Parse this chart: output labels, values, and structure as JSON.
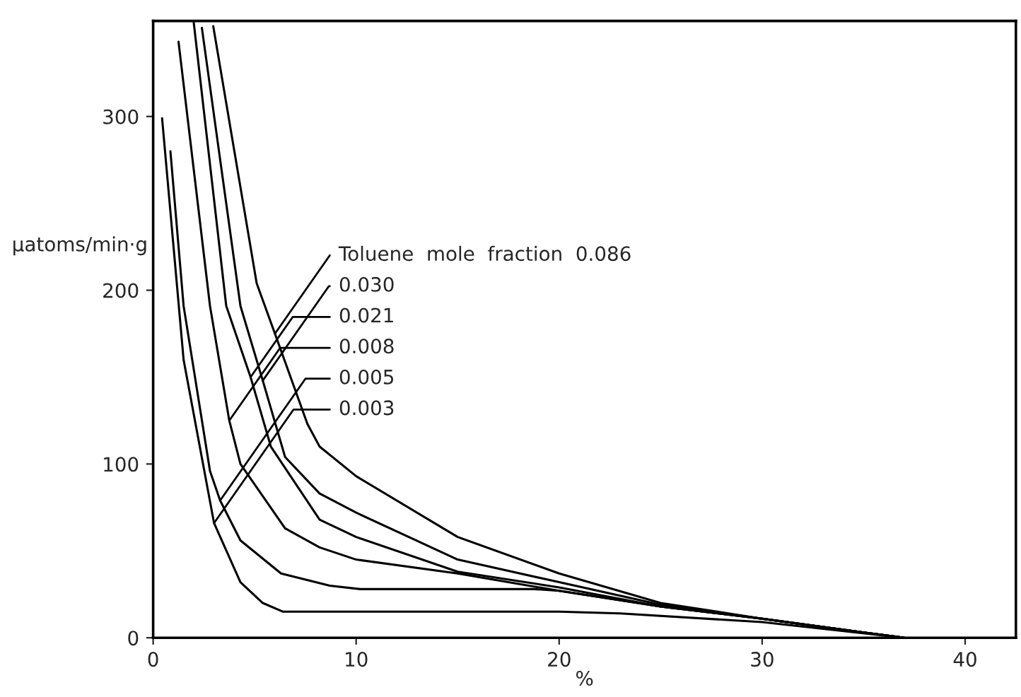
{
  "chart_data": {
    "type": "line",
    "xlabel": "%",
    "ylabel": "μatoms/min·g",
    "xlim": [
      0,
      42.5
    ],
    "ylim": [
      0,
      355
    ],
    "xticks": [
      0,
      10,
      20,
      30,
      40
    ],
    "yticks": [
      0,
      100,
      200,
      300
    ],
    "grid": false,
    "legend": false,
    "marker": "none",
    "line_style": "solid",
    "series": [
      {
        "color": "#000000",
        "x": [
          0.44,
          1.5,
          3.0,
          4.3,
          5.4,
          6.4,
          10,
          15,
          20,
          23,
          30,
          37
        ],
        "values": [
          299,
          160,
          66,
          32,
          20,
          15,
          15,
          15,
          15,
          14,
          9,
          0
        ]
      },
      {
        "color": "#000000",
        "x": [
          0.85,
          1.5,
          2.8,
          3.3,
          4.3,
          6.3,
          8.7,
          10.2,
          15,
          18.8,
          20,
          25,
          30,
          35,
          37
        ],
        "values": [
          280,
          191,
          96,
          79,
          56,
          37,
          30,
          28,
          28,
          28,
          27,
          18,
          11,
          3,
          0
        ]
      },
      {
        "color": "#000000",
        "x": [
          1.25,
          2.8,
          3.75,
          4.3,
          6.5,
          8.2,
          10,
          15,
          20,
          25,
          30,
          35,
          37
        ],
        "values": [
          343,
          191,
          125,
          100,
          63,
          52,
          45,
          37,
          27,
          18,
          11,
          3,
          0
        ]
      },
      {
        "color": "#000000",
        "x": [
          2.0,
          3.6,
          4.8,
          5.8,
          8.2,
          10,
          15,
          20,
          25,
          30,
          35,
          37
        ],
        "values": [
          354,
          191,
          150,
          110,
          68,
          58,
          38,
          29,
          18,
          11,
          3,
          0
        ]
      },
      {
        "color": "#000000",
        "x": [
          2.4,
          4.3,
          5.4,
          6.5,
          8.2,
          10,
          15,
          20,
          25,
          30,
          35,
          37
        ],
        "values": [
          351,
          191,
          148,
          104,
          83,
          72,
          45,
          32,
          19,
          11,
          3,
          0
        ]
      },
      {
        "color": "#000000",
        "x": [
          2.96,
          5.1,
          6.0,
          7.6,
          8.2,
          10,
          15,
          20,
          25,
          30,
          35,
          37
        ],
        "values": [
          352,
          204,
          175,
          123,
          110,
          93,
          58,
          37,
          20,
          11,
          3,
          0
        ]
      }
    ],
    "annotations": [
      {
        "text": "Toluene  mole  fraction  0.086",
        "x": 6.0,
        "y": 175
      },
      {
        "text": "0.030",
        "x": 5.4,
        "y": 148
      },
      {
        "text": "0.021",
        "x": 4.8,
        "y": 150
      },
      {
        "text": "0.008",
        "x": 3.75,
        "y": 125
      },
      {
        "text": "0.005",
        "x": 3.3,
        "y": 79
      },
      {
        "text": "0.003",
        "x": 3.0,
        "y": 66
      }
    ]
  }
}
